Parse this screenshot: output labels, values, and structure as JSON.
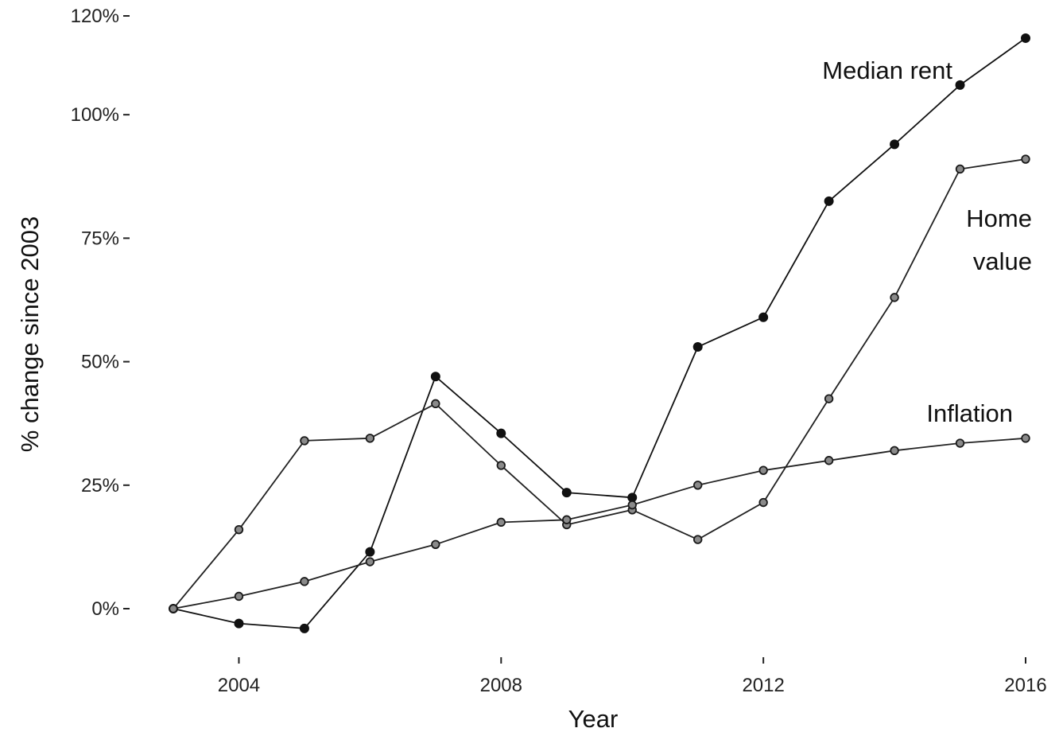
{
  "chart_data": {
    "type": "line",
    "title": "",
    "xlabel": "Year",
    "ylabel": "% change since 2003",
    "x": [
      2003,
      2004,
      2005,
      2006,
      2007,
      2008,
      2009,
      2010,
      2011,
      2012,
      2013,
      2014,
      2015,
      2016
    ],
    "xlim": [
      2002.3,
      2016.3
    ],
    "ylim": [
      -10,
      121
    ],
    "x_ticks": [
      {
        "value": 2004,
        "label": "2004"
      },
      {
        "value": 2008,
        "label": "2008"
      },
      {
        "value": 2012,
        "label": "2012"
      },
      {
        "value": 2016,
        "label": "2016"
      }
    ],
    "y_ticks": [
      {
        "value": 0,
        "label": "0%"
      },
      {
        "value": 25,
        "label": "25%"
      },
      {
        "value": 50,
        "label": "50%"
      },
      {
        "value": 75,
        "label": "75%"
      },
      {
        "value": 100,
        "label": "100%"
      },
      {
        "value": 120,
        "label": "120%"
      }
    ],
    "grid": false,
    "legend": "none (labels placed at line ends)",
    "series": [
      {
        "name": "Median rent",
        "label_lines": [
          "Median rent"
        ],
        "marker": "filled",
        "color": "#111111",
        "values": [
          0,
          -3,
          -4,
          11.5,
          47,
          35.5,
          23.5,
          22.5,
          53,
          59,
          82.5,
          94,
          106,
          115.5
        ]
      },
      {
        "name": "Home value",
        "label_lines": [
          "Home",
          "value"
        ],
        "marker": "hollow",
        "color": "#222222",
        "values": [
          0,
          16,
          34,
          34.5,
          41.5,
          29,
          17,
          20,
          14,
          21.5,
          42.5,
          63,
          89,
          91
        ]
      },
      {
        "name": "Inflation",
        "label_lines": [
          "Inflation"
        ],
        "marker": "hollow",
        "color": "#222222",
        "values": [
          0,
          2.5,
          5.5,
          9.5,
          13,
          17.5,
          18,
          21,
          25,
          28,
          30,
          32,
          33.5,
          34.5
        ]
      }
    ]
  }
}
